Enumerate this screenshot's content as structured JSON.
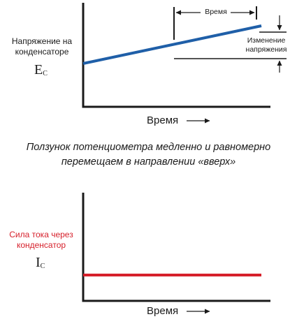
{
  "colors": {
    "voltage_line": "#1f5fa8",
    "current_line": "#d6202b",
    "axis": "#1a1a1a",
    "current_label": "#d6202b"
  },
  "top_graph": {
    "y_label": "Напряжение на конденсаторе",
    "symbol_main": "E",
    "symbol_sub": "C",
    "x_label": "Время",
    "time_label": "Время",
    "delta_label": "Изменение напряжения"
  },
  "caption": "Ползунок потенциометра медленно и равномерно перемещаем в направлении «вверх»",
  "bottom_graph": {
    "y_label": "Сила тока через конденсатор",
    "symbol_main": "I",
    "symbol_sub": "C",
    "x_label": "Время"
  },
  "icons": {
    "x_arrow": "right-arrow-icon",
    "time_arrows": "double-headed-arrow-icon",
    "delta_arrows": "vertical-arrow-icon"
  }
}
